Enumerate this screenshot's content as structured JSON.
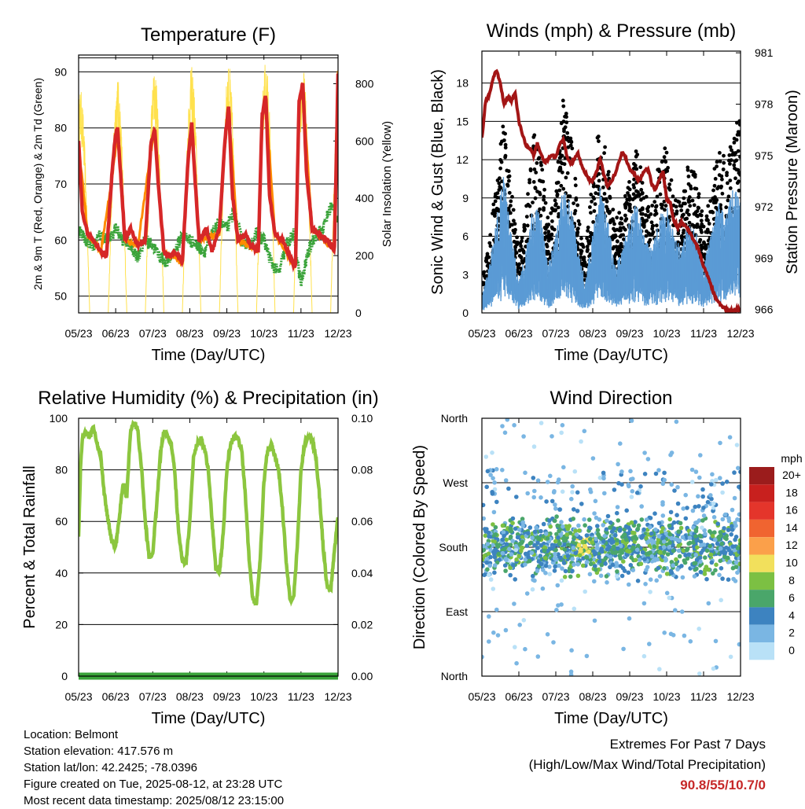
{
  "chart_data": [
    {
      "type": "line",
      "title": "Temperature (F)",
      "xlabel": "Time (Day/UTC)",
      "ylabel": "2m & 9m T (Red, Orange) & 2m Td (Green)",
      "ylabel_right": "Solar Insolation (Yellow)",
      "xticks": [
        "05/23",
        "06/23",
        "07/23",
        "08/23",
        "09/23",
        "10/23",
        "11/23",
        "12/23"
      ],
      "yticks": [
        50,
        60,
        70,
        80,
        90
      ],
      "yticks_right": [
        0,
        200,
        400,
        600,
        800
      ],
      "ylim": [
        47,
        93
      ],
      "ylim_right": [
        0,
        900
      ],
      "xlim": [
        5,
        12
      ],
      "series": [
        {
          "name": "2m T",
          "color": "#d62728",
          "x": [
            5.0,
            5.1,
            5.25,
            5.4,
            5.6,
            5.75,
            5.9,
            6.0,
            6.05,
            6.15,
            6.25,
            6.4,
            6.6,
            6.8,
            6.95,
            7.05,
            7.15,
            7.3,
            7.45,
            7.6,
            7.8,
            7.95,
            8.05,
            8.15,
            8.25,
            8.45,
            8.6,
            8.8,
            8.95,
            9.05,
            9.15,
            9.3,
            9.5,
            9.65,
            9.85,
            9.95,
            10.05,
            10.15,
            10.3,
            10.5,
            10.7,
            10.85,
            10.95,
            11.05,
            11.15,
            11.3,
            11.5,
            11.7,
            11.9,
            11.98,
            12.0
          ],
          "y": [
            77.5,
            65,
            61,
            60,
            58,
            57,
            72,
            79,
            80,
            70,
            60,
            62,
            59,
            60,
            77,
            80,
            70,
            58,
            57,
            58,
            56,
            74,
            81,
            70,
            60,
            62,
            58,
            62,
            78,
            84,
            68,
            60,
            61,
            59,
            58,
            82,
            86,
            68,
            61,
            60,
            57,
            55,
            85,
            88,
            72,
            62,
            61,
            60,
            58,
            83,
            90
          ]
        },
        {
          "name": "9m T",
          "color": "#ff8c00",
          "x": [
            5.0,
            5.25,
            5.6,
            5.9,
            6.05,
            6.25,
            6.6,
            6.95,
            7.05,
            7.3,
            7.8,
            7.95,
            8.05,
            8.25,
            8.8,
            8.95,
            9.05,
            9.3,
            9.85,
            9.95,
            10.05,
            10.3,
            10.85,
            10.95,
            11.05,
            11.3,
            11.9,
            12.0
          ],
          "y": [
            77,
            61,
            58,
            71,
            79,
            60,
            59,
            76,
            79,
            58,
            56,
            73,
            80,
            60,
            61,
            77,
            83,
            60,
            58,
            81,
            85,
            61,
            55,
            84,
            87,
            62,
            58,
            90
          ]
        },
        {
          "name": "2m Td",
          "color": "#3aa33a",
          "x": [
            5.0,
            5.2,
            5.4,
            5.6,
            5.8,
            6.0,
            6.2,
            6.4,
            6.6,
            6.8,
            7.0,
            7.2,
            7.4,
            7.6,
            7.8,
            8.0,
            8.2,
            8.4,
            8.6,
            8.8,
            9.0,
            9.2,
            9.4,
            9.6,
            9.8,
            10.0,
            10.2,
            10.4,
            10.6,
            10.8,
            11.0,
            11.2,
            11.4,
            11.6,
            11.8,
            12.0
          ],
          "y": [
            62,
            60,
            59,
            61,
            60,
            62,
            60,
            59,
            57,
            60,
            59,
            57,
            56,
            58,
            61,
            60,
            59,
            58,
            61,
            63,
            62,
            65,
            60,
            59,
            61,
            60,
            56,
            54,
            59,
            61,
            52,
            58,
            61,
            62,
            66,
            64
          ]
        },
        {
          "name": "Solar Insolation",
          "color": "#ffe14d",
          "peaks": [
            780,
            820,
            850,
            860,
            870,
            880,
            860,
            870
          ]
        }
      ]
    },
    {
      "type": "line",
      "title": "Winds (mph) & Pressure (mb)",
      "xlabel": "Time (Day/UTC)",
      "ylabel": "Sonic Wind & Gust (Blue, Black)",
      "ylabel_right": "Station Pressure (Maroon)",
      "xticks": [
        "05/23",
        "06/23",
        "07/23",
        "08/23",
        "09/23",
        "10/23",
        "11/23",
        "12/23"
      ],
      "yticks": [
        0,
        3,
        6,
        9,
        12,
        15,
        18
      ],
      "yticks_right": [
        966,
        969,
        972,
        975,
        978,
        981
      ],
      "ylim": [
        0,
        20.5
      ],
      "ylim_right": [
        965.8,
        981.1
      ],
      "series": [
        {
          "name": "Station Pressure",
          "color": "#a31515",
          "x": [
            5.0,
            5.1,
            5.2,
            5.3,
            5.4,
            5.5,
            5.6,
            5.7,
            5.8,
            5.9,
            6.0,
            6.1,
            6.2,
            6.3,
            6.4,
            6.5,
            6.6,
            6.7,
            6.8,
            6.9,
            7.0,
            7.1,
            7.2,
            7.3,
            7.4,
            7.5,
            7.6,
            7.7,
            7.8,
            7.9,
            8.0,
            8.1,
            8.2,
            8.3,
            8.4,
            8.5,
            8.6,
            8.7,
            8.8,
            8.9,
            9.0,
            9.1,
            9.2,
            9.3,
            9.4,
            9.5,
            9.6,
            9.7,
            9.8,
            9.9,
            10.0,
            10.1,
            10.2,
            10.3,
            10.4,
            10.5,
            10.6,
            10.7,
            10.8,
            10.9,
            11.0,
            11.1,
            11.2,
            11.3,
            11.4,
            11.5,
            11.6,
            11.7,
            11.8,
            11.9,
            12.0
          ],
          "y": [
            976.0,
            978.2,
            978.5,
            979.5,
            980.0,
            979.2,
            978.0,
            978.4,
            978.2,
            978.7,
            977.0,
            976.2,
            975.6,
            975.4,
            975.0,
            975.7,
            975.1,
            974.6,
            974.8,
            975.0,
            974.9,
            975.6,
            976.0,
            975.0,
            974.5,
            974.8,
            975.1,
            974.4,
            974.0,
            973.6,
            973.5,
            974.0,
            974.8,
            973.9,
            973.2,
            973.5,
            973.9,
            974.6,
            975.2,
            974.8,
            974.2,
            974.0,
            973.6,
            973.7,
            974.1,
            974.2,
            973.3,
            973.0,
            973.6,
            974.1,
            972.5,
            972.2,
            971.2,
            970.8,
            971.1,
            970.9,
            970.6,
            970.2,
            969.8,
            969.3,
            968.5,
            968.0,
            967.4,
            966.8,
            966.4,
            966.2,
            966.0,
            965.9,
            965.9,
            966.0,
            966.0
          ]
        },
        {
          "name": "Sonic Wind",
          "color": "#5b9bd5",
          "x": [
            5.0,
            5.2,
            5.4,
            5.6,
            5.8,
            6.0,
            6.2,
            6.4,
            6.6,
            6.8,
            7.0,
            7.2,
            7.4,
            7.6,
            7.8,
            8.0,
            8.2,
            8.4,
            8.6,
            8.8,
            9.0,
            9.2,
            9.4,
            9.6,
            9.8,
            10.0,
            10.2,
            10.4,
            10.6,
            10.8,
            11.0,
            11.2,
            11.4,
            11.6,
            11.8,
            12.0
          ],
          "y": [
            1,
            3,
            6,
            9,
            5,
            2,
            4,
            7,
            6,
            3,
            5,
            8,
            7,
            4,
            2,
            5,
            8,
            6,
            3,
            4,
            6,
            7,
            5,
            4,
            6,
            7,
            5,
            4,
            6,
            5,
            3,
            5,
            7,
            6,
            8,
            7
          ]
        },
        {
          "name": "Gust",
          "color": "#000000",
          "x": [
            5.0,
            5.2,
            5.4,
            5.6,
            5.8,
            6.0,
            6.2,
            6.4,
            6.6,
            6.8,
            7.0,
            7.2,
            7.4,
            7.6,
            7.8,
            8.0,
            8.2,
            8.4,
            8.6,
            8.8,
            9.0,
            9.2,
            9.4,
            9.6,
            9.8,
            10.0,
            10.2,
            10.4,
            10.6,
            10.8,
            11.0,
            11.2,
            11.4,
            11.6,
            11.8,
            12.0
          ],
          "y": [
            2,
            5,
            9,
            13,
            8,
            4,
            7,
            12,
            10,
            6,
            8,
            14,
            12,
            7,
            4,
            9,
            13,
            10,
            6,
            7,
            9,
            11,
            8,
            7,
            10,
            11,
            8,
            7,
            10,
            9,
            6,
            8,
            11,
            10,
            12,
            13
          ]
        }
      ]
    },
    {
      "type": "line",
      "title": "Relative Humidity (%) & Precipitation (in)",
      "xlabel": "Time (Day/UTC)",
      "ylabel": "Percent & Total Rainfall",
      "xticks": [
        "05/23",
        "06/23",
        "07/23",
        "08/23",
        "09/23",
        "10/23",
        "11/23",
        "12/23"
      ],
      "yticks": [
        0,
        20,
        40,
        60,
        80,
        100
      ],
      "yticks_right": [
        "0.00",
        "0.02",
        "0.04",
        "0.06",
        "0.08",
        "0.10"
      ],
      "ylim": [
        0,
        100
      ],
      "ylim_right": [
        0,
        0.1
      ],
      "series": [
        {
          "name": "Relative Humidity",
          "color": "#8cc63f",
          "x": [
            5.0,
            5.05,
            5.1,
            5.2,
            5.3,
            5.4,
            5.5,
            5.6,
            5.7,
            5.8,
            5.9,
            6.0,
            6.1,
            6.2,
            6.3,
            6.4,
            6.5,
            6.6,
            6.7,
            6.8,
            6.9,
            7.0,
            7.1,
            7.2,
            7.3,
            7.4,
            7.5,
            7.6,
            7.7,
            7.8,
            7.9,
            8.0,
            8.1,
            8.2,
            8.3,
            8.4,
            8.5,
            8.6,
            8.7,
            8.8,
            8.9,
            9.0,
            9.1,
            9.2,
            9.3,
            9.4,
            9.5,
            9.6,
            9.7,
            9.8,
            9.9,
            10.0,
            10.1,
            10.2,
            10.3,
            10.4,
            10.5,
            10.6,
            10.7,
            10.8,
            10.9,
            11.0,
            11.1,
            11.2,
            11.3,
            11.4,
            11.5,
            11.6,
            11.7,
            11.8,
            11.9,
            12.0
          ],
          "y": [
            55,
            80,
            92,
            95,
            93,
            97,
            90,
            85,
            70,
            60,
            52,
            50,
            62,
            75,
            70,
            95,
            98,
            95,
            80,
            60,
            46,
            48,
            65,
            85,
            95,
            93,
            90,
            78,
            55,
            45,
            44,
            60,
            85,
            90,
            92,
            88,
            80,
            60,
            42,
            40,
            55,
            80,
            90,
            93,
            92,
            88,
            70,
            45,
            30,
            28,
            45,
            75,
            88,
            90,
            85,
            80,
            65,
            45,
            30,
            30,
            50,
            80,
            90,
            93,
            92,
            85,
            70,
            50,
            35,
            33,
            48,
            62
          ]
        },
        {
          "name": "Total Rainfall",
          "color": "#3aa33a",
          "x": [
            5.0,
            12.0
          ],
          "y": [
            0,
            0
          ]
        }
      ]
    },
    {
      "type": "scatter",
      "title": "Wind Direction",
      "xlabel": "Time (Day/UTC)",
      "ylabel": "Direction (Colored By Speed)",
      "xticks": [
        "05/23",
        "06/23",
        "07/23",
        "08/23",
        "09/23",
        "10/23",
        "11/23",
        "12/23"
      ],
      "yticks": [
        "North",
        "East",
        "South",
        "West",
        "North"
      ],
      "ylim": [
        0,
        360
      ],
      "colorbar": {
        "title": "mph",
        "labels": [
          "20+",
          "18",
          "16",
          "14",
          "12",
          "10",
          "8",
          "6",
          "4",
          "2",
          "0"
        ],
        "colors": [
          "#9b1c1c",
          "#c8201e",
          "#e4352b",
          "#f06430",
          "#fba04a",
          "#f2e05c",
          "#7cc043",
          "#4aa66a",
          "#3d83c0",
          "#7ab6e3",
          "#b9e1f7"
        ]
      },
      "series": [
        {
          "name": "Direction",
          "x": [
            5.0,
            12.0
          ],
          "y": [
            180,
            180
          ]
        }
      ]
    }
  ],
  "info": {
    "location": "Location: Belmont",
    "elevation": "Station elevation: 417.576 m",
    "latlon": "Station lat/lon: 42.2425; -78.0396",
    "created": "Figure created on Tue, 2025-08-12, at 23:28 UTC",
    "recent": "Most recent data timestamp: 2025/08/12 23:15:00"
  },
  "extremes": {
    "title": "Extremes For Past 7 Days",
    "subtitle": "(High/Low/Max Wind/Total Precipitation)",
    "values": "90.8/55/10.7/0"
  }
}
